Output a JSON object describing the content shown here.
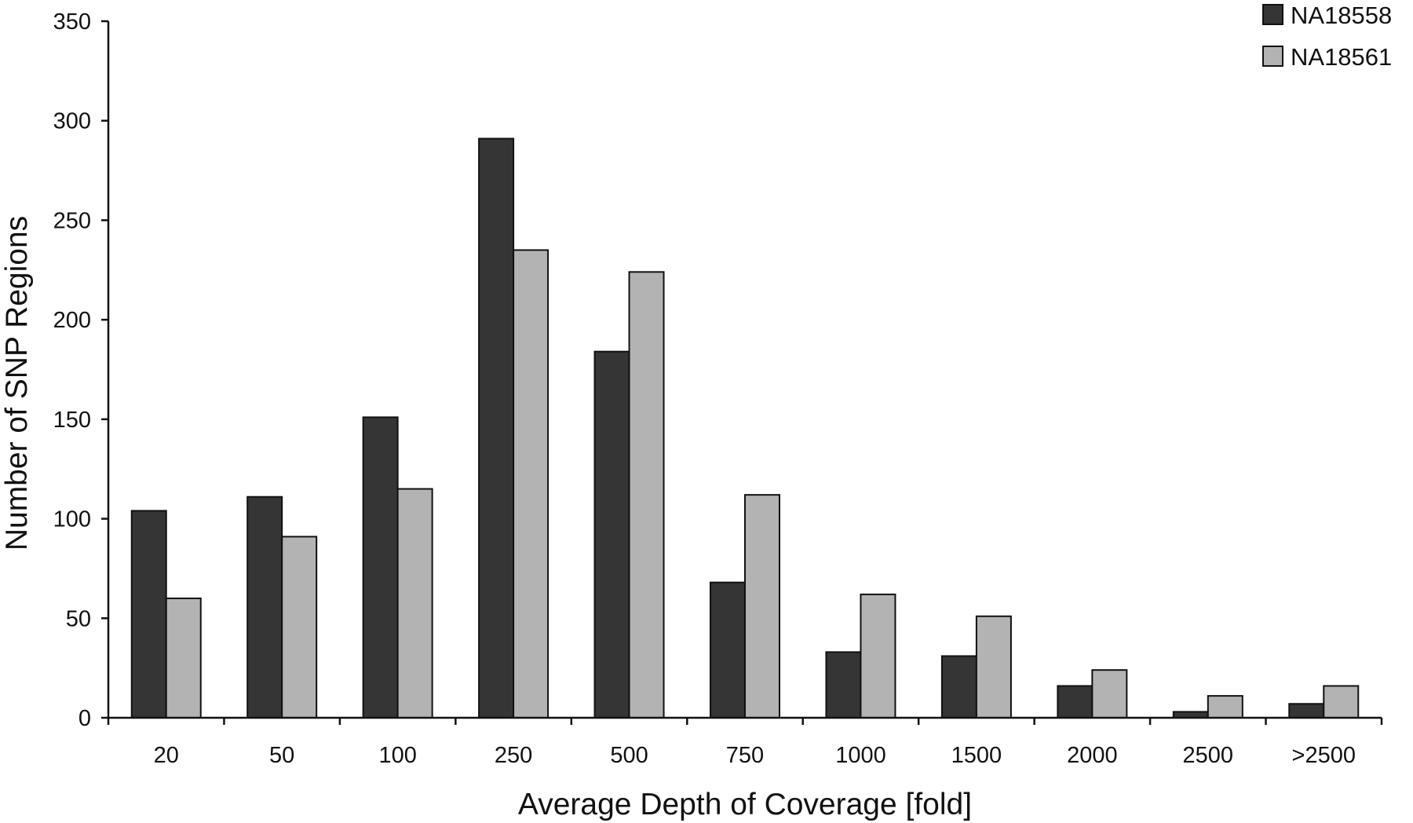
{
  "chart_data": {
    "type": "bar",
    "title": "",
    "xlabel": "Average Depth of Coverage [fold]",
    "ylabel": "Number of SNP Regions",
    "ylim": [
      0,
      350
    ],
    "yticks": [
      "0",
      "50",
      "100",
      "150",
      "200",
      "250",
      "300",
      "350"
    ],
    "categories": [
      "20",
      "50",
      "100",
      "250",
      "500",
      "750",
      "1000",
      "1500",
      "2000",
      "2500",
      ">2500"
    ],
    "grid": false,
    "legend_position": "top-right",
    "series": [
      {
        "name": "NA18558",
        "color": "#353535",
        "values": [
          104,
          111,
          151,
          291,
          184,
          68,
          33,
          31,
          16,
          3,
          7
        ]
      },
      {
        "name": "NA18561",
        "color": "#b3b3b3",
        "values": [
          60,
          91,
          115,
          235,
          224,
          112,
          62,
          51,
          24,
          11,
          16
        ]
      }
    ]
  }
}
